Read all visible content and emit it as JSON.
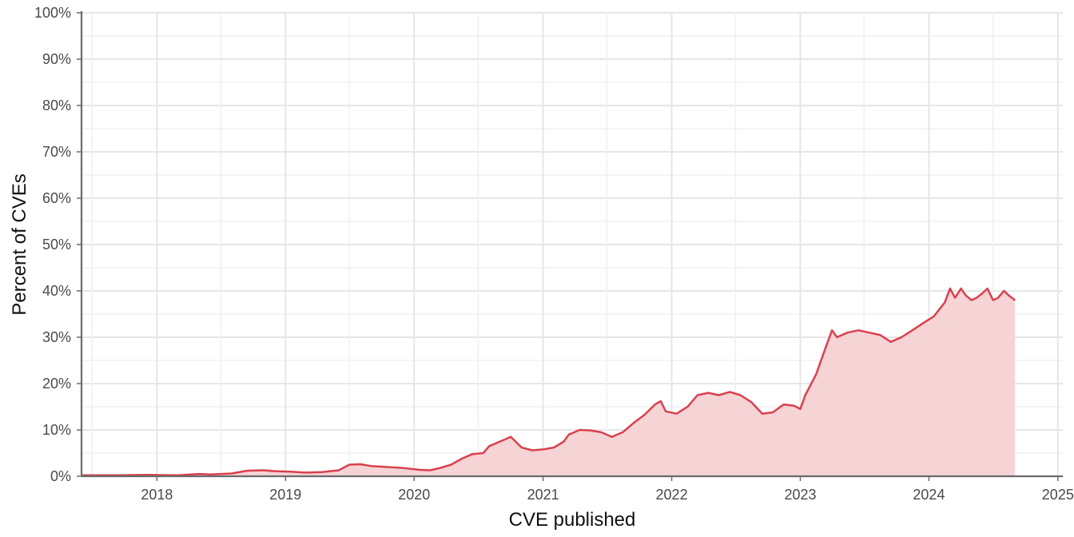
{
  "chart_data": {
    "type": "area",
    "xlabel": "CVE published",
    "ylabel": "Percent of CVEs",
    "x_ticks": [
      "2018",
      "2019",
      "2020",
      "2021",
      "2022",
      "2023",
      "2024",
      "2025"
    ],
    "y_ticks": [
      "0%",
      "10%",
      "20%",
      "30%",
      "40%",
      "50%",
      "60%",
      "70%",
      "80%",
      "90%",
      "100%"
    ],
    "xlim": [
      "2017-06-01",
      "2025-01-15"
    ],
    "ylim": [
      0,
      100
    ],
    "grid": true,
    "legend": "none",
    "colors": {
      "line": "#d9414e",
      "fill": "#f6d3d5",
      "axis": "#6b6b6b",
      "grid": "#e6e6e6"
    },
    "series": [
      {
        "x": [
          "2017-06-01",
          "2017-09-01",
          "2017-12-01",
          "2018-03-01",
          "2018-05-01",
          "2018-06-01",
          "2018-08-01",
          "2018-09-15",
          "2018-11-01",
          "2018-12-01",
          "2019-01-15",
          "2019-03-01",
          "2019-04-15",
          "2019-06-01",
          "2019-07-01",
          "2019-08-01",
          "2019-09-01",
          "2019-10-15",
          "2019-12-01",
          "2020-01-15",
          "2020-02-15",
          "2020-03-15",
          "2020-04-15",
          "2020-05-15",
          "2020-06-15",
          "2020-07-15",
          "2020-08-01",
          "2020-09-01",
          "2020-10-01",
          "2020-10-15",
          "2020-11-01",
          "2020-12-01",
          "2021-01-01",
          "2021-02-01",
          "2021-03-01",
          "2021-03-15",
          "2021-04-15",
          "2021-05-15",
          "2021-06-15",
          "2021-07-15",
          "2021-08-15",
          "2021-09-15",
          "2021-10-15",
          "2021-11-15",
          "2021-12-01",
          "2021-12-15",
          "2022-01-15",
          "2022-02-15",
          "2022-03-15",
          "2022-04-15",
          "2022-05-15",
          "2022-06-15",
          "2022-07-15",
          "2022-08-15",
          "2022-09-15",
          "2022-10-15",
          "2022-11-15",
          "2022-12-15",
          "2023-01-01",
          "2023-01-15",
          "2023-02-15",
          "2023-03-15",
          "2023-04-01",
          "2023-04-15",
          "2023-05-15",
          "2023-06-15",
          "2023-07-15",
          "2023-08-15",
          "2023-09-15",
          "2023-10-15",
          "2023-11-15",
          "2023-12-15",
          "2024-01-15",
          "2024-02-15",
          "2024-03-01",
          "2024-03-15",
          "2024-04-01",
          "2024-04-15",
          "2024-05-01",
          "2024-05-15",
          "2024-06-01",
          "2024-06-15",
          "2024-07-01",
          "2024-07-15",
          "2024-08-01",
          "2024-08-15",
          "2024-09-01"
        ],
        "values": [
          0.2,
          0.2,
          0.3,
          0.2,
          0.5,
          0.4,
          0.6,
          1.2,
          1.3,
          1.1,
          1.0,
          0.8,
          0.9,
          1.3,
          2.5,
          2.6,
          2.2,
          2.0,
          1.8,
          1.4,
          1.3,
          1.8,
          2.5,
          3.8,
          4.8,
          5.0,
          6.5,
          7.5,
          8.5,
          7.5,
          6.2,
          5.6,
          5.8,
          6.2,
          7.5,
          9.0,
          10.0,
          9.9,
          9.5,
          8.5,
          9.5,
          11.5,
          13.2,
          15.5,
          16.2,
          14.0,
          13.5,
          15.0,
          17.5,
          18.0,
          17.5,
          18.2,
          17.5,
          16.0,
          13.5,
          13.8,
          15.5,
          15.2,
          14.5,
          17.5,
          22.0,
          28.0,
          31.5,
          30.0,
          31.0,
          31.5,
          31.0,
          30.5,
          29.0,
          30.0,
          31.5,
          33.0,
          34.5,
          37.5,
          40.5,
          38.5,
          40.5,
          39.0,
          38.0,
          38.5,
          39.5,
          40.5,
          38.0,
          38.5,
          40.0,
          39.0,
          38.0
        ]
      }
    ]
  }
}
